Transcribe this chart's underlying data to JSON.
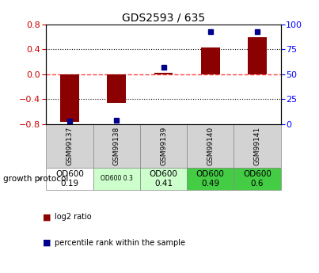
{
  "title": "GDS2593 / 635",
  "samples": [
    "GSM99137",
    "GSM99138",
    "GSM99139",
    "GSM99140",
    "GSM99141"
  ],
  "log2_ratio": [
    -0.76,
    -0.46,
    0.02,
    0.43,
    0.6
  ],
  "percentile_rank": [
    3,
    4,
    57,
    93,
    93
  ],
  "ylim_left": [
    -0.8,
    0.8
  ],
  "ylim_right": [
    0,
    100
  ],
  "yticks_left": [
    -0.8,
    -0.4,
    0.0,
    0.4,
    0.8
  ],
  "yticks_right": [
    0,
    25,
    50,
    75,
    100
  ],
  "bar_color": "#8B0000",
  "dot_color": "#00008B",
  "zero_line_color": "#FF4444",
  "grid_color": "#000000",
  "annotation_labels": [
    "OD600\n0.19",
    "OD600 0.3",
    "OD600\n0.41",
    "OD600\n0.49",
    "OD600\n0.6"
  ],
  "annotation_bg_colors": [
    "#ffffff",
    "#ccffcc",
    "#ccffcc",
    "#44cc44",
    "#44cc44"
  ],
  "annotation_font_sizes": [
    7.5,
    5.5,
    7.5,
    7.5,
    7.5
  ],
  "growth_protocol_label": "growth protocol",
  "legend_log2": "log2 ratio",
  "legend_pct": "percentile rank within the sample"
}
